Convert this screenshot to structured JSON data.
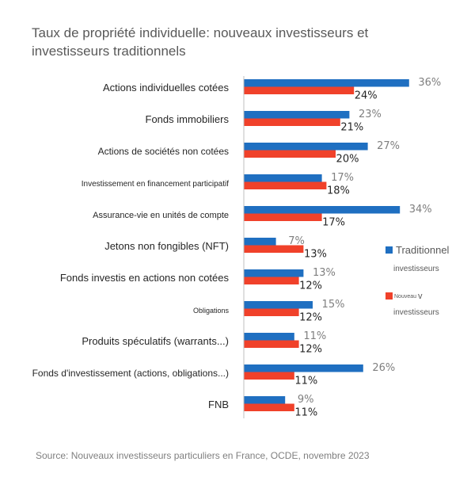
{
  "chart_data": {
    "type": "bar",
    "orientation": "horizontal",
    "title": "Taux de propriété individuelle: nouveaux investisseurs et investisseurs traditionnels",
    "categories": [
      "Actions individuelles cotées",
      "Fonds immobiliers",
      "Actions de sociétés non cotées",
      "Investissement en financement participatif",
      "Assurance-vie en unités de compte",
      "Jetons non fongibles (NFT)",
      "Fonds investis en actions non cotées",
      "Obligations",
      "Produits spéculatifs (warrants...)",
      "Fonds d'investissement (actions, obligations...)",
      "FNB"
    ],
    "series": [
      {
        "name": "Traditionnel investisseurs",
        "color": "#1f6fc1",
        "values": [
          36,
          23,
          27,
          17,
          34,
          7,
          13,
          15,
          11,
          26,
          9
        ]
      },
      {
        "name": "Nouveau investisseurs",
        "color": "#f0412a",
        "values": [
          24,
          21,
          20,
          18,
          17,
          13,
          12,
          12,
          12,
          11,
          11
        ]
      }
    ],
    "value_suffix": "%",
    "xlim": [
      0,
      40
    ],
    "legend_position": "right",
    "grid": false,
    "source": "Source: Nouveaux investisseurs particuliers en France, OCDE, novembre 2023"
  }
}
